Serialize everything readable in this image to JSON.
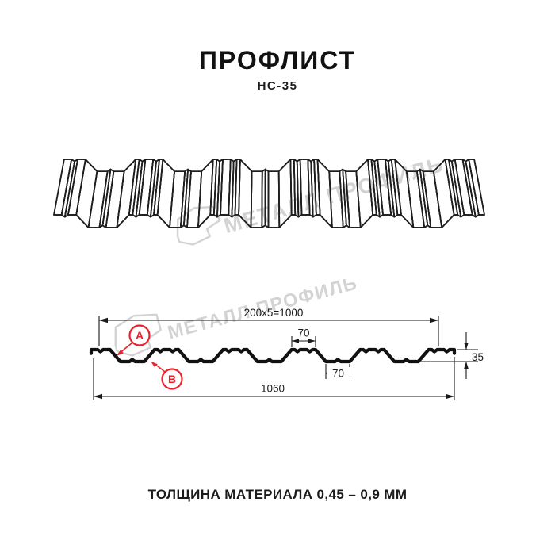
{
  "header": {
    "title": "ПРОФЛИСТ",
    "subtitle": "НС-35"
  },
  "footer": {
    "text": "ТОЛЩИНА МАТЕРИАЛА 0,45 – 0,9 ММ"
  },
  "watermark": {
    "text": "МЕТАЛЛ ПРОФИЛЬ"
  },
  "colors": {
    "line": "#1e1e1e",
    "accent": "#e8232e",
    "watermark": "#c9c9c9"
  },
  "section_dimensions": {
    "coverage": "200x5=1000",
    "crest_width": "70",
    "valley_width": "70",
    "overall_width": "1060",
    "height": "35"
  },
  "markers": {
    "a": "А",
    "b": "В"
  },
  "profile_geometry": {
    "period_mm": 200,
    "depth_mm": 35,
    "crest_width_mm": 70,
    "valley_width_mm": 70,
    "overall_width_mm": 1060,
    "coverage_width_mm": 1000,
    "ribs": 5
  }
}
